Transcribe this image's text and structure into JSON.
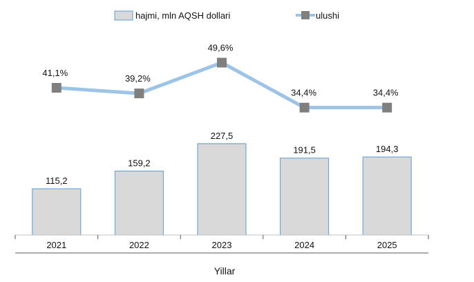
{
  "chart_data": {
    "type": "bar+line",
    "categories": [
      "2021",
      "2022",
      "2023",
      "2024",
      "2025"
    ],
    "xlabel": "Yillar",
    "legend_position": "top",
    "series": [
      {
        "name": "hajmi, mln AQSH dollari",
        "type": "bar",
        "values": [
          115.2,
          159.2,
          227.5,
          191.5,
          194.3
        ],
        "labels": [
          "115,2",
          "159,2",
          "227,5",
          "191,5",
          "194,3"
        ],
        "color": "#d9d9d9",
        "border_color": "#5b9bd5"
      },
      {
        "name": "ulushi",
        "type": "line",
        "values": [
          41.1,
          39.2,
          49.6,
          34.4,
          34.4
        ],
        "labels": [
          "41,1%",
          "39,2%",
          "49,6%",
          "34,4%",
          "34,4%"
        ],
        "color": "#9dc3e6",
        "marker_color": "#7f7f7f"
      }
    ]
  }
}
